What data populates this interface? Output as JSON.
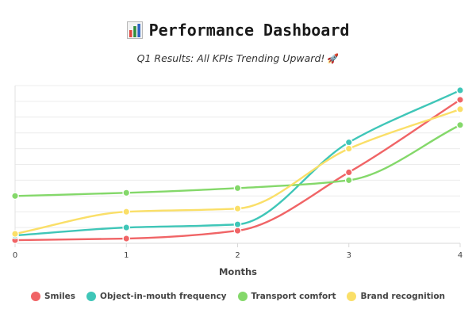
{
  "header": {
    "title": "Performance Dashboard",
    "title_icon": "bar-chart-icon",
    "subtitle": "Q1 Results: All KPIs Trending Upward!",
    "subtitle_icon": "rocket-icon"
  },
  "chart_data": {
    "type": "line",
    "title": "Performance Dashboard",
    "subtitle": "Q1 Results: All KPIs Trending Upward!",
    "xlabel": "Months",
    "ylabel": "",
    "x": [
      0,
      1,
      2,
      3,
      4
    ],
    "xticks": [
      "0",
      "1",
      "2",
      "3",
      "4"
    ],
    "ylim": [
      0,
      100
    ],
    "grid": true,
    "legend_position": "bottom",
    "series": [
      {
        "name": "Smiles",
        "color": "#f06466",
        "values": [
          2,
          3,
          8,
          45,
          91
        ]
      },
      {
        "name": "Object-in-mouth frequency",
        "color": "#3fc6b8",
        "values": [
          5,
          10,
          12,
          64,
          97
        ]
      },
      {
        "name": "Transport comfort",
        "color": "#84d86a",
        "values": [
          30,
          32,
          35,
          40,
          75
        ]
      },
      {
        "name": "Brand recognition",
        "color": "#fadf68",
        "values": [
          6,
          20,
          22,
          60,
          85
        ]
      }
    ]
  }
}
